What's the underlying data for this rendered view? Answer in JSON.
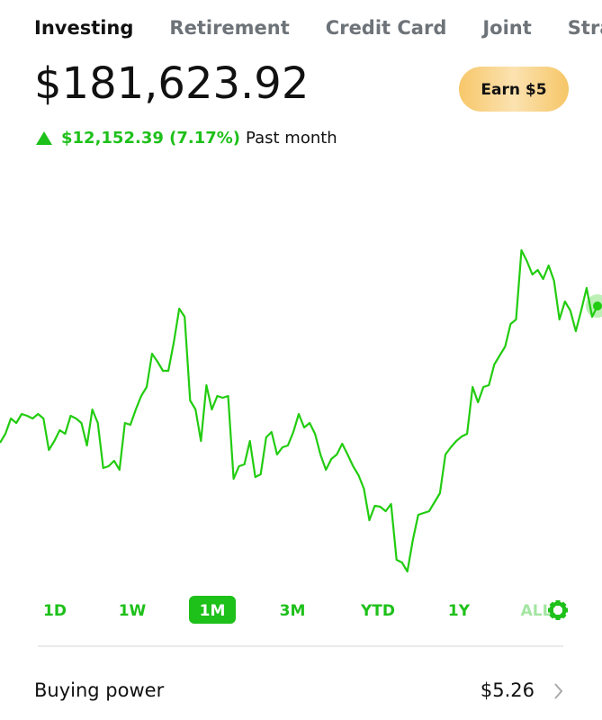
{
  "tabs": [
    "Investing",
    "Retirement",
    "Credit Card",
    "Joint",
    "Strategies"
  ],
  "balance": "$181,623.92",
  "earn_button": "Earn $5",
  "change": {
    "amount": "$12,152.39 (7.17%)",
    "period": "Past month"
  },
  "chart_data": {
    "type": "line",
    "color": "#22cc10",
    "values": [
      169312,
      170122,
      171499,
      171094,
      171904,
      171742,
      171499,
      171904,
      171499,
      168664,
      169474,
      170446,
      170122,
      171742,
      171499,
      171094,
      169069,
      172309,
      171094,
      167044,
      167206,
      167692,
      166882,
      171094,
      170932,
      172309,
      173524,
      174334,
      177331,
      176602,
      175792,
      175792,
      178384,
      181381,
      180652,
      173119,
      172309,
      169474,
      174496,
      172309,
      173524,
      173362,
      173524,
      166072,
      167206,
      167368,
      169474,
      166234,
      166477,
      169798,
      170284,
      168259,
      168907,
      169069,
      170284,
      171904,
      170689,
      171094,
      170122,
      168259,
      166882,
      167854,
      168259,
      169231,
      168259,
      167206,
      166396,
      165181,
      162346,
      163642,
      163561,
      163156,
      163804,
      158782,
      158539,
      157729,
      160564,
      162832,
      162994,
      163156,
      163966,
      164776,
      168259,
      168907,
      169474,
      169879,
      170122,
      174334,
      172957,
      174334,
      174496,
      176359,
      177169,
      177979,
      180004,
      180409,
      186646,
      185674,
      184459,
      184864,
      184054,
      185269,
      183892,
      180409,
      182029,
      181219,
      179356,
      181219,
      183244,
      180652,
      181624
    ],
    "ylim": [
      157324,
      195394
    ]
  },
  "ranges": [
    "1D",
    "1W",
    "1M",
    "3M",
    "YTD",
    "1Y",
    "ALL"
  ],
  "selected_range": 2,
  "buying_power": {
    "label": "Buying power",
    "value": "$5.26"
  }
}
